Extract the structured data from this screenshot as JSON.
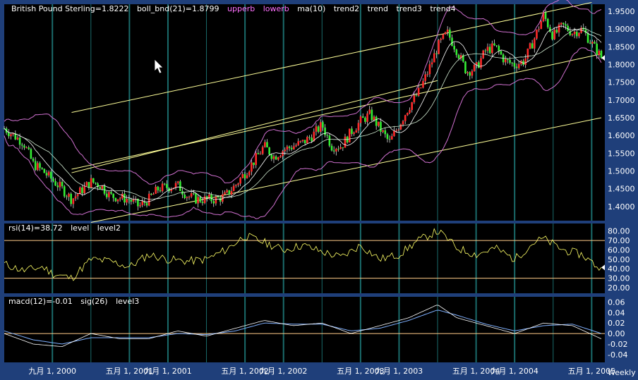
{
  "colors": {
    "frame": "#1f3f7a",
    "panel_bg": "#000000",
    "grid": "#1a6b6b",
    "price_up": "#ff2a2a",
    "price_down": "#33ee33",
    "boll": "#d070d0",
    "ma": "#ffffff",
    "trend": "#ffff99",
    "rsi": "#ffff66",
    "level": "#ffcc88",
    "macd": "#ffffff",
    "sig": "#7fb0ff",
    "header_text": "#ffffff",
    "header_magenta": "#ff70ff"
  },
  "header": {
    "price": "British Pound Sterling=1.8222",
    "boll": "boll_bnd(21)=1.8799",
    "upperb": "upperb",
    "lowerb": "lowerb",
    "ma": "ma(10)",
    "trend2": "trend2",
    "trend": "trend",
    "trend3": "trend3",
    "trend4": "trend4",
    "rsi": "rsi(14)=38.72",
    "rsi_level": "level",
    "rsi_level2": "level2",
    "macd": "macd(12)=-0.01",
    "macd_sig": "sig(26)",
    "macd_level3": "level3",
    "period": "Weekly"
  },
  "x_labels": [
    "九月 1, 2000",
    "五月 1, 2001",
    "九月 1, 2001",
    "五月 1, 2002",
    "九月 1, 2002",
    "五月 1, 2003",
    "九月 1, 2003",
    "五月 1, 2004",
    "九月 1, 2004",
    "五月 1, 2005"
  ],
  "chart_data": [
    {
      "type": "candlestick",
      "title": "British Pound Sterling",
      "period": "Weekly",
      "x_range": [
        "2000-04",
        "2005-06"
      ],
      "ylim": [
        1.36,
        1.97
      ],
      "ticks": [
        "1.9500",
        "1.9000",
        "1.8500",
        "1.8000",
        "1.7500",
        "1.7000",
        "1.6500",
        "1.6000",
        "1.5500",
        "1.5000",
        "1.4500",
        "1.4000"
      ],
      "tick_values": [
        1.95,
        1.9,
        1.85,
        1.8,
        1.75,
        1.7,
        1.65,
        1.6,
        1.55,
        1.5,
        1.45,
        1.4
      ],
      "close_path": [
        [
          "2000-04",
          1.62
        ],
        [
          "2000-06",
          1.58
        ],
        [
          "2000-07",
          1.52
        ],
        [
          "2000-08",
          1.5
        ],
        [
          "2000-10",
          1.45
        ],
        [
          "2000-11",
          1.42
        ],
        [
          "2001-01",
          1.47
        ],
        [
          "2001-02",
          1.46
        ],
        [
          "2001-03",
          1.43
        ],
        [
          "2001-05",
          1.42
        ],
        [
          "2001-06",
          1.4
        ],
        [
          "2001-07",
          1.42
        ],
        [
          "2001-08",
          1.45
        ],
        [
          "2001-10",
          1.46
        ],
        [
          "2001-11",
          1.43
        ],
        [
          "2001-12",
          1.42
        ],
        [
          "2002-02",
          1.42
        ],
        [
          "2002-03",
          1.43
        ],
        [
          "2002-04",
          1.46
        ],
        [
          "2002-06",
          1.53
        ],
        [
          "2002-07",
          1.57
        ],
        [
          "2002-08",
          1.54
        ],
        [
          "2002-09",
          1.56
        ],
        [
          "2002-11",
          1.58
        ],
        [
          "2002-12",
          1.6
        ],
        [
          "2003-01",
          1.63
        ],
        [
          "2003-02",
          1.57
        ],
        [
          "2003-03",
          1.57
        ],
        [
          "2003-04",
          1.61
        ],
        [
          "2003-05",
          1.64
        ],
        [
          "2003-06",
          1.66
        ],
        [
          "2003-07",
          1.62
        ],
        [
          "2003-08",
          1.58
        ],
        [
          "2003-09",
          1.63
        ],
        [
          "2003-10",
          1.68
        ],
        [
          "2003-11",
          1.72
        ],
        [
          "2003-12",
          1.78
        ],
        [
          "2004-01",
          1.85
        ],
        [
          "2004-02",
          1.89
        ],
        [
          "2004-03",
          1.84
        ],
        [
          "2004-04",
          1.78
        ],
        [
          "2004-05",
          1.79
        ],
        [
          "2004-06",
          1.84
        ],
        [
          "2004-07",
          1.85
        ],
        [
          "2004-08",
          1.81
        ],
        [
          "2004-09",
          1.8
        ],
        [
          "2004-10",
          1.81
        ],
        [
          "2004-11",
          1.87
        ],
        [
          "2004-12",
          1.94
        ],
        [
          "2005-01",
          1.88
        ],
        [
          "2005-02",
          1.91
        ],
        [
          "2005-03",
          1.89
        ],
        [
          "2005-04",
          1.9
        ],
        [
          "2005-05",
          1.86
        ],
        [
          "2005-06",
          1.82
        ]
      ],
      "annotations": [
        "upperb",
        "lowerb",
        "ma(10)",
        "trend2",
        "trend",
        "trend3",
        "trend4"
      ]
    },
    {
      "type": "line",
      "name": "rsi(14)",
      "ylim": [
        14,
        88
      ],
      "ticks": [
        "80.00",
        "70.00",
        "60.00",
        "50.00",
        "40.00",
        "30.00",
        "20.00"
      ],
      "tick_values": [
        80,
        70,
        60,
        50,
        40,
        30,
        20
      ],
      "levels": [
        70,
        30
      ],
      "x": [
        "2000-04",
        "2000-06",
        "2000-08",
        "2000-09",
        "2000-11",
        "2001-01",
        "2001-03",
        "2001-05",
        "2001-07",
        "2001-09",
        "2001-11",
        "2002-01",
        "2002-03",
        "2002-05",
        "2002-07",
        "2002-09",
        "2002-11",
        "2003-01",
        "2003-03",
        "2003-05",
        "2003-07",
        "2003-09",
        "2003-11",
        "2004-01",
        "2004-02",
        "2004-03",
        "2004-05",
        "2004-07",
        "2004-09",
        "2004-11",
        "2004-12",
        "2005-02",
        "2005-04",
        "2005-06"
      ],
      "values": [
        45,
        38,
        42,
        35,
        30,
        50,
        48,
        42,
        55,
        50,
        48,
        50,
        60,
        75,
        68,
        60,
        65,
        58,
        52,
        65,
        50,
        55,
        70,
        80,
        72,
        62,
        55,
        62,
        50,
        68,
        72,
        60,
        55,
        39
      ]
    },
    {
      "type": "line",
      "series_names": [
        "macd(12)",
        "sig(26)"
      ],
      "ylim": [
        -0.055,
        0.07
      ],
      "ticks": [
        "0.06",
        "0.04",
        "0.02",
        "0.00",
        "-0.02",
        "-0.04"
      ],
      "tick_values": [
        0.06,
        0.04,
        0.02,
        0.0,
        -0.02,
        -0.04
      ],
      "levels": [
        0
      ],
      "x": [
        "2000-04",
        "2000-07",
        "2000-10",
        "2001-01",
        "2001-04",
        "2001-07",
        "2001-10",
        "2002-01",
        "2002-04",
        "2002-07",
        "2002-10",
        "2003-01",
        "2003-04",
        "2003-07",
        "2003-10",
        "2004-01",
        "2004-03",
        "2004-06",
        "2004-09",
        "2004-12",
        "2005-03",
        "2005-06"
      ],
      "macd": [
        0.0,
        -0.02,
        -0.025,
        0.0,
        -0.01,
        -0.01,
        0.005,
        -0.005,
        0.01,
        0.025,
        0.015,
        0.02,
        0.0,
        0.015,
        0.03,
        0.055,
        0.03,
        0.015,
        0.0,
        0.02,
        0.015,
        -0.01
      ],
      "sig": [
        0.005,
        -0.012,
        -0.02,
        -0.008,
        -0.008,
        -0.008,
        0.0,
        -0.002,
        0.005,
        0.02,
        0.018,
        0.018,
        0.005,
        0.01,
        0.025,
        0.045,
        0.035,
        0.018,
        0.005,
        0.015,
        0.018,
        0.0
      ]
    }
  ]
}
